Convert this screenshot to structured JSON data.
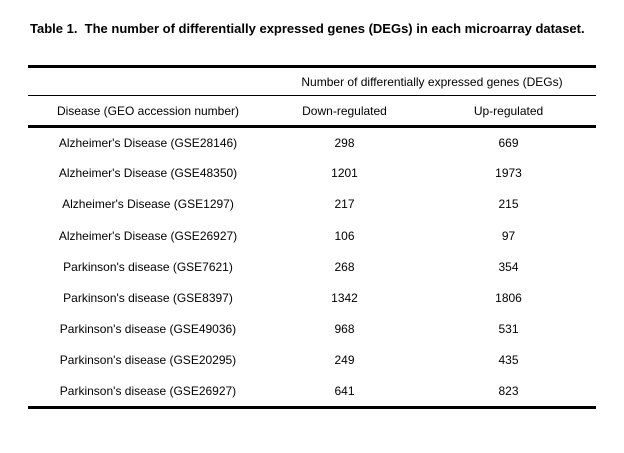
{
  "page": {
    "background_color": "#ffffff",
    "text_color": "#000000",
    "rule_color": "#000000"
  },
  "table": {
    "title": "Table 1.  The number of differentially expressed genes (DEGs) in each microarray dataset.",
    "spanner": "Number of differentially expressed genes (DEGs)",
    "columns": [
      "Disease (GEO accession number)",
      "Down-regulated",
      "Up-regulated"
    ],
    "rows": [
      {
        "disease": "Alzheimer's Disease (GSE28146)",
        "down": "298",
        "up": "669"
      },
      {
        "disease": "Alzheimer's Disease (GSE48350)",
        "down": "1201",
        "up": "1973"
      },
      {
        "disease": "Alzheimer's Disease (GSE1297)",
        "down": "217",
        "up": "215"
      },
      {
        "disease": "Alzheimer's Disease (GSE26927)",
        "down": "106",
        "up": "97"
      },
      {
        "disease": "Parkinson's disease (GSE7621)",
        "down": "268",
        "up": "354"
      },
      {
        "disease": "Parkinson's disease (GSE8397)",
        "down": "1342",
        "up": "1806"
      },
      {
        "disease": "Parkinson's disease (GSE49036)",
        "down": "968",
        "up": "531"
      },
      {
        "disease": "Parkinson's disease (GSE20295)",
        "down": "249",
        "up": "435"
      },
      {
        "disease": "Parkinson's disease (GSE26927)",
        "down": "641",
        "up": "823"
      }
    ]
  }
}
